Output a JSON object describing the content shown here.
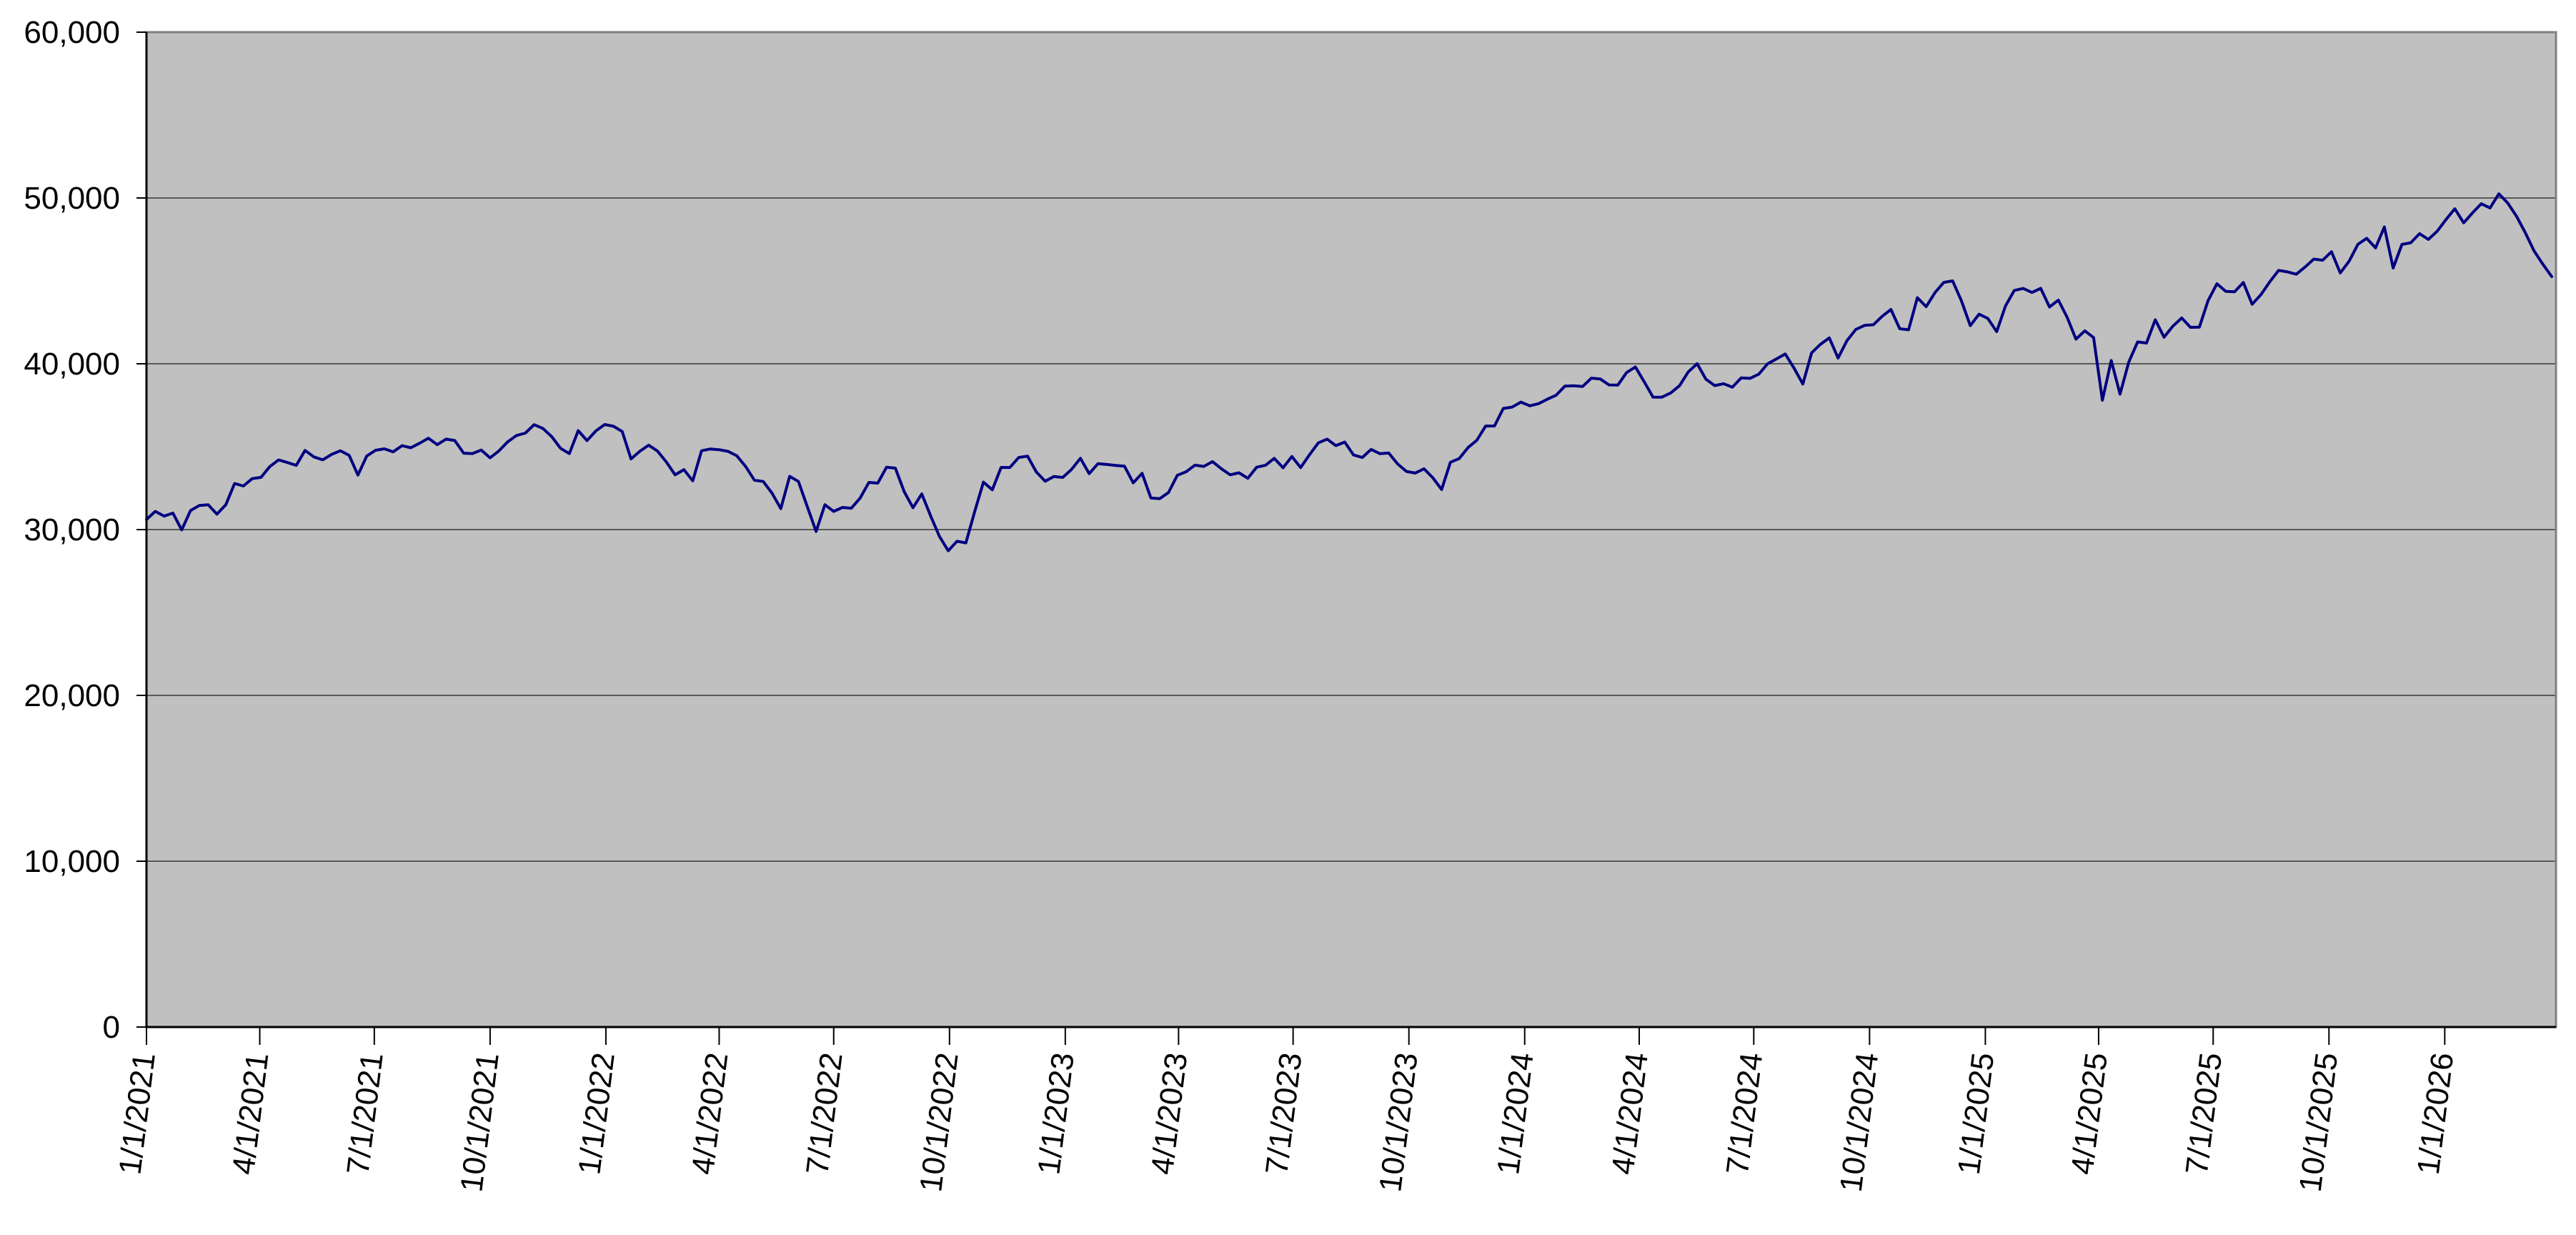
{
  "chart_data": {
    "type": "line",
    "title": "",
    "xlabel": "",
    "ylabel": "",
    "ylim": [
      0,
      60000
    ],
    "y_tick_interval": 10000,
    "grid": "horizontal",
    "legend": "none",
    "plot_bg_color": "#c0c0c0",
    "plot_border_color": "#808080",
    "gridline_color": "#595959",
    "axis_color": "#000000",
    "line_color": "#000080",
    "y_tick_labels": [
      "60,000",
      "50,000",
      "40,000",
      "30,000",
      "20,000",
      "10,000",
      "0"
    ],
    "x_tick_labels": [
      "1/1/2021",
      "4/1/2021",
      "7/1/2021",
      "10/1/2021",
      "1/1/2022",
      "4/1/2022",
      "7/1/2022",
      "10/1/2022",
      "1/1/2023",
      "4/1/2023",
      "7/1/2023",
      "10/1/2023",
      "1/1/2024",
      "4/1/2024",
      "7/1/2024",
      "10/1/2024",
      "1/1/2025",
      "4/1/2025",
      "7/1/2025",
      "10/1/2025",
      "1/1/2026"
    ],
    "x_tick_day_offsets": [
      0,
      90,
      181,
      273,
      365,
      455,
      546,
      638,
      730,
      820,
      911,
      1003,
      1095,
      1186,
      1277,
      1369,
      1461,
      1551,
      1642,
      1734,
      1826
    ],
    "series": [
      {
        "name": "",
        "start_date": "1/1/2021",
        "end_date": "3/27/2026",
        "interval": "weekly",
        "values": [
          30606,
          31098,
          30814,
          30997,
          29983,
          31148,
          31458,
          31494,
          30932,
          31496,
          32779,
          32628,
          33073,
          33153,
          33801,
          34201,
          34043,
          33875,
          34778,
          34382,
          34208,
          34529,
          34756,
          34480,
          33290,
          34434,
          34786,
          34870,
          34688,
          35062,
          34935,
          35209,
          35515,
          35120,
          35456,
          35369,
          34608,
          34585,
          34798,
          34326,
          34746,
          35295,
          35677,
          35820,
          36328,
          36100,
          35602,
          34899,
          34580,
          35971,
          35365,
          35950,
          36338,
          36232,
          35912,
          34265,
          34725,
          35090,
          34738,
          34079,
          33300,
          33615,
          32944,
          34755,
          34861,
          34818,
          34721,
          34451,
          33811,
          32977,
          32899,
          32197,
          31262,
          33213,
          32900,
          31393,
          29889,
          31501,
          31097,
          31338,
          31288,
          31899,
          32845,
          32803,
          33761,
          33707,
          32283,
          31318,
          32152,
          30822,
          29590,
          28726,
          29297,
          29200,
          31083,
          32862,
          32403,
          33748,
          33746,
          34347,
          34430,
          33476,
          32920,
          33204,
          33147,
          33631,
          34303,
          33375,
          33978,
          33926,
          33869,
          33827,
          32817,
          33391,
          31910,
          31862,
          32238,
          33274,
          33485,
          33886,
          33809,
          34098,
          33674,
          33301,
          33427,
          33093,
          33763,
          33877,
          34299,
          33727,
          34408,
          33735,
          34510,
          35228,
          35459,
          35066,
          35281,
          34501,
          34347,
          34838,
          34577,
          34618,
          33964,
          33508,
          33408,
          33670,
          33127,
          32418,
          34061,
          34283,
          34947,
          35390,
          36245,
          36248,
          37305,
          37386,
          37690,
          37466,
          37593,
          37864,
          38109,
          38654,
          38672,
          38628,
          39132,
          39087,
          38723,
          38715,
          39476,
          39807,
          38904,
          37983,
          37986,
          38240,
          38676,
          39513,
          40004,
          39070,
          38686,
          38799,
          38589,
          39150,
          39119,
          39376,
          40001,
          40288,
          40589,
          39737,
          38780,
          40660,
          41175,
          41563,
          40345,
          41394,
          42063,
          42313,
          42353,
          42864,
          43276,
          42114,
          42052,
          43989,
          43445,
          44297,
          44911,
          45000,
          43800,
          42300,
          42992,
          42732,
          41938,
          43488,
          44424,
          44545,
          44303,
          44546,
          43428,
          43841,
          42802,
          41488,
          41985,
          41584,
          37800,
          40200,
          38170,
          40114,
          41317,
          41249,
          42655,
          41603,
          42270,
          42763,
          42198,
          42207,
          43819,
          44829,
          44372,
          44342,
          44902,
          43589,
          44176,
          44946,
          45632,
          45545,
          45401,
          45834,
          46315,
          46247,
          46758,
          45480,
          46191,
          47207,
          47563,
          46987,
          48254,
          45776,
          47200,
          47300,
          47850,
          47500,
          48000,
          48700,
          49350,
          48500,
          49100,
          49650,
          49400,
          50250,
          49700,
          48900,
          47900,
          46800,
          46000,
          45260
        ]
      }
    ]
  }
}
